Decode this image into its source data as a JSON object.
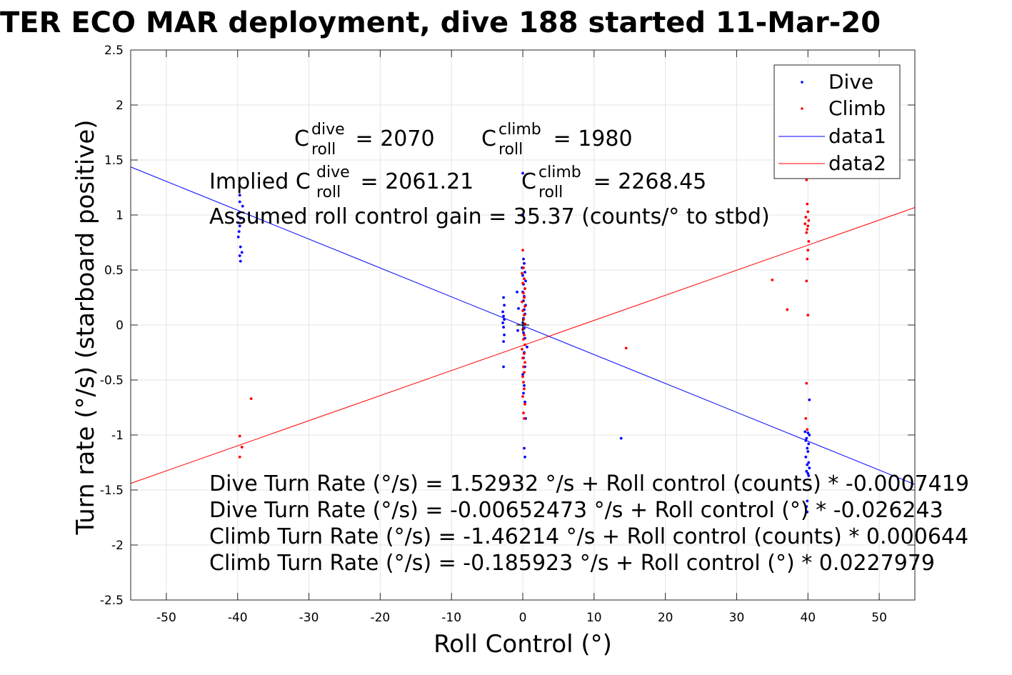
{
  "colors": {
    "dive": "#0000ff",
    "climb": "#ff0000",
    "grid": "#e4e4e4",
    "axis": "#262626"
  },
  "chart_data": {
    "type": "scatter",
    "title": "TER ECO MAR deployment, dive 188 started 11-Mar-20",
    "xlabel": "Roll Control (°)",
    "ylabel": "Turn rate (°/s) (starboard positive)",
    "xlim": [
      -55,
      55
    ],
    "ylim": [
      -2.5,
      2.5
    ],
    "xticks": [
      -50,
      -40,
      -30,
      -20,
      -10,
      0,
      10,
      20,
      30,
      40,
      50
    ],
    "xtick_labels": [
      "-50",
      "-40",
      "-30",
      "-20",
      "-10",
      "0",
      "10",
      "20",
      "30",
      "40",
      "50"
    ],
    "yticks": [
      2.5,
      2,
      1.5,
      1,
      0.5,
      0,
      -0.5,
      -1,
      -1.5,
      -2,
      -2.5
    ],
    "ytick_labels": [
      "2.5",
      "2",
      "1.5",
      "1",
      "0.5",
      "0",
      "-0.5",
      "-1",
      "-1.5",
      "-2",
      "-2.5"
    ],
    "grid": true,
    "legend_position": "top-right",
    "legend": [
      "Dive",
      "Climb",
      "data1",
      "data2"
    ],
    "series": [
      {
        "name": "Dive",
        "kind": "points",
        "color": "#0000ff",
        "points": [
          [
            -39.7,
            1.18
          ],
          [
            -39.7,
            1.12
          ],
          [
            -39.3,
            1.08
          ],
          [
            -39.8,
            1.02
          ],
          [
            -39.6,
            0.97
          ],
          [
            -39.9,
            0.93
          ],
          [
            -39.7,
            0.9
          ],
          [
            -39.8,
            0.85
          ],
          [
            -39.9,
            0.8
          ],
          [
            -39.6,
            0.71
          ],
          [
            -39.4,
            0.66
          ],
          [
            -39.7,
            0.63
          ],
          [
            -39.6,
            0.58
          ],
          [
            -2.7,
            0.25
          ],
          [
            -2.6,
            0.18
          ],
          [
            -2.8,
            0.12
          ],
          [
            -2.7,
            0.08
          ],
          [
            -2.6,
            0.05
          ],
          [
            -2.8,
            0.02
          ],
          [
            -2.7,
            -0.02
          ],
          [
            -2.6,
            -0.09
          ],
          [
            -2.7,
            -0.15
          ],
          [
            -2.7,
            -0.38
          ],
          [
            -0.8,
            0.3
          ],
          [
            -0.6,
            0.15
          ],
          [
            -0.7,
            -0.05
          ],
          [
            0.0,
            1.38
          ],
          [
            0.0,
            1.0
          ],
          [
            0.1,
            0.6
          ],
          [
            0.2,
            0.56
          ],
          [
            -0.1,
            0.52
          ],
          [
            0.3,
            0.48
          ],
          [
            0.0,
            0.45
          ],
          [
            0.4,
            0.4
          ],
          [
            0.1,
            0.37
          ],
          [
            0.3,
            0.33
          ],
          [
            0.0,
            0.3
          ],
          [
            0.2,
            0.26
          ],
          [
            0.1,
            0.22
          ],
          [
            0.4,
            0.18
          ],
          [
            0.2,
            0.14
          ],
          [
            0.3,
            0.1
          ],
          [
            0.1,
            0.06
          ],
          [
            0.0,
            0.02
          ],
          [
            0.2,
            -0.03
          ],
          [
            0.1,
            -0.07
          ],
          [
            0.3,
            -0.12
          ],
          [
            0.6,
            -0.2
          ],
          [
            0.2,
            -0.25
          ],
          [
            0.1,
            -0.3
          ],
          [
            0.3,
            -0.38
          ],
          [
            0.0,
            -0.45
          ],
          [
            0.2,
            -0.55
          ],
          [
            0.1,
            -0.62
          ],
          [
            0.3,
            -0.7
          ],
          [
            0.4,
            -0.85
          ],
          [
            0.2,
            -1.12
          ],
          [
            0.3,
            -1.2
          ],
          [
            13.8,
            -1.03
          ],
          [
            39.6,
            -0.97
          ],
          [
            40.0,
            -0.98
          ],
          [
            40.2,
            -1.0
          ],
          [
            39.8,
            -1.03
          ],
          [
            39.7,
            -1.05
          ],
          [
            40.1,
            -1.08
          ],
          [
            39.9,
            -1.12
          ],
          [
            40.0,
            -1.15
          ],
          [
            39.7,
            -1.2
          ],
          [
            40.1,
            -1.25
          ],
          [
            39.9,
            -1.27
          ],
          [
            40.2,
            -1.3
          ],
          [
            39.8,
            -1.33
          ],
          [
            40.0,
            -1.35
          ],
          [
            40.1,
            -1.37
          ],
          [
            40.2,
            -0.68
          ],
          [
            39.9,
            -1.6
          ],
          [
            39.8,
            -1.65
          ],
          [
            39.9,
            -1.7
          ]
        ]
      },
      {
        "name": "Climb",
        "kind": "points",
        "color": "#ff0000",
        "points": [
          [
            -38.1,
            -0.67
          ],
          [
            -39.7,
            -1.01
          ],
          [
            -39.4,
            -1.11
          ],
          [
            -39.7,
            -1.2
          ],
          [
            0.0,
            0.68
          ],
          [
            0.1,
            0.52
          ],
          [
            -0.1,
            0.47
          ],
          [
            0.2,
            0.42
          ],
          [
            0.0,
            0.38
          ],
          [
            0.3,
            0.33
          ],
          [
            0.1,
            0.29
          ],
          [
            0.2,
            0.25
          ],
          [
            -0.1,
            0.21
          ],
          [
            0.3,
            0.17
          ],
          [
            0.0,
            0.13
          ],
          [
            0.2,
            0.09
          ],
          [
            0.1,
            0.05
          ],
          [
            0.3,
            0.01
          ],
          [
            0.0,
            -0.04
          ],
          [
            0.2,
            -0.09
          ],
          [
            0.1,
            -0.13
          ],
          [
            0.3,
            -0.18
          ],
          [
            -0.1,
            -0.22
          ],
          [
            0.2,
            -0.26
          ],
          [
            0.0,
            -0.3
          ],
          [
            0.3,
            -0.34
          ],
          [
            0.1,
            -0.38
          ],
          [
            0.2,
            -0.43
          ],
          [
            0.0,
            -0.47
          ],
          [
            0.1,
            -0.52
          ],
          [
            0.2,
            -0.58
          ],
          [
            0.0,
            -0.65
          ],
          [
            0.3,
            -0.72
          ],
          [
            0.1,
            -0.8
          ],
          [
            0.2,
            -0.85
          ],
          [
            14.5,
            -0.21
          ],
          [
            35.0,
            0.41
          ],
          [
            37.1,
            0.14
          ],
          [
            39.8,
            1.32
          ],
          [
            39.9,
            1.1
          ],
          [
            40.0,
            1.03
          ],
          [
            39.7,
            0.98
          ],
          [
            40.1,
            0.95
          ],
          [
            39.6,
            0.92
          ],
          [
            40.0,
            0.9
          ],
          [
            39.9,
            0.87
          ],
          [
            39.8,
            0.84
          ],
          [
            40.1,
            0.76
          ],
          [
            40.0,
            0.68
          ],
          [
            39.9,
            0.6
          ],
          [
            39.8,
            0.4
          ],
          [
            40.0,
            0.09
          ],
          [
            39.8,
            -0.53
          ],
          [
            39.7,
            -0.85
          ],
          [
            39.9,
            -0.95
          ]
        ]
      },
      {
        "name": "data1",
        "kind": "line",
        "color": "#0000ff",
        "slope": -0.026243,
        "intercept": -0.00652473,
        "x": [
          -55,
          55
        ]
      },
      {
        "name": "data2",
        "kind": "line",
        "color": "#ff0000",
        "slope": 0.0227979,
        "intercept": -0.185923,
        "x": [
          -55,
          55
        ]
      }
    ],
    "zero_marker": {
      "x": 0,
      "y": 0,
      "symbol": "+"
    },
    "annotations": {
      "c_dive_base": "C",
      "c_dive_sup": "dive",
      "c_dive_sub": "roll",
      "c_dive_val": " = 2070",
      "c_climb_base": "C",
      "c_climb_sup": "climb",
      "c_climb_sub": "roll",
      "c_climb_val": " = 1980",
      "implied_prefix": "Implied C",
      "implied_dive_sup": "dive",
      "implied_dive_sub": "roll",
      "implied_dive_val": " = 2061.21",
      "implied_climb_base": "C",
      "implied_climb_sup": "climb",
      "implied_climb_sub": "roll",
      "implied_climb_val": " = 2268.45",
      "gain": "Assumed roll control gain = 35.37 (counts/° to stbd)",
      "eq1": "Dive Turn Rate (°/s) = 1.52932 °/s + Roll control (counts) * -0.0007419",
      "eq2": "Dive Turn Rate (°/s) = -0.00652473 °/s + Roll control (°) * -0.026243",
      "eq3": "Climb Turn Rate (°/s) = -1.46214 °/s + Roll control (counts) * 0.000644",
      "eq4": "Climb Turn Rate (°/s) = -0.185923 °/s + Roll control (°) * 0.0227979"
    }
  }
}
